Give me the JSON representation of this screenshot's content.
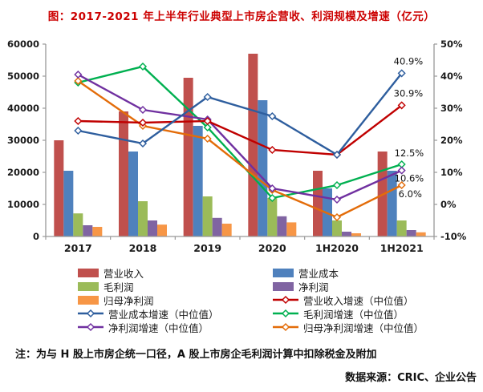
{
  "chart_data": {
    "type": "bar",
    "combo": "grouped bars (left axis, 亿元) + lines with diamond markers (right axis, %)",
    "title": "图：2017-2021 年上半年行业典型上市房企营收、利润规模及增速（亿元）",
    "categories": [
      "2017",
      "2018",
      "2019",
      "2020",
      "1H2020",
      "1H2021"
    ],
    "bar_series": [
      {
        "name": "营业收入",
        "color": "#C0504D",
        "values": [
          30000,
          39000,
          49500,
          57000,
          20500,
          26500
        ]
      },
      {
        "name": "营业成本",
        "color": "#4F81BD",
        "values": [
          20500,
          26500,
          34500,
          42500,
          15000,
          20500
        ]
      },
      {
        "name": "毛利润",
        "color": "#9BBB59",
        "values": [
          7200,
          11000,
          12500,
          12000,
          5000,
          5000
        ]
      },
      {
        "name": "净利润",
        "color": "#8064A2",
        "values": [
          3500,
          5000,
          5800,
          6300,
          1500,
          2000
        ]
      },
      {
        "name": "归母净利润",
        "color": "#F79646",
        "values": [
          3000,
          3700,
          4000,
          4400,
          1000,
          1300
        ]
      }
    ],
    "line_series": [
      {
        "name": "营业收入增速（中位值）",
        "color": "#C00000",
        "values": [
          26,
          25.5,
          26,
          17,
          15.5,
          30.9
        ],
        "end_label": "30.9%"
      },
      {
        "name": "营业成本增速（中位值）",
        "color": "#2E5E9E",
        "values": [
          23,
          19,
          33.5,
          27.5,
          15.5,
          40.9
        ],
        "end_label": "40.9%"
      },
      {
        "name": "毛利润增速（中位值）",
        "color": "#00B050",
        "values": [
          38,
          43,
          24,
          2,
          6,
          12.5
        ],
        "end_label": "12.5%"
      },
      {
        "name": "净利润增速（中位值）",
        "color": "#7030A0",
        "values": [
          40.5,
          29.5,
          26.5,
          5,
          1.5,
          10.6
        ],
        "end_label": "10.6%"
      },
      {
        "name": "归母净利润增速（中位值）",
        "color": "#E36C09",
        "values": [
          38.5,
          24.5,
          20.5,
          4.5,
          -4,
          6.0
        ],
        "end_label": "6.0%"
      }
    ],
    "left_axis": {
      "min": 0,
      "max": 60000,
      "step": 10000,
      "tick_labels": [
        "0",
        "10000",
        "20000",
        "30000",
        "40000",
        "50000",
        "60000"
      ]
    },
    "right_axis": {
      "min": -10,
      "max": 50,
      "step": 10,
      "tick_labels": [
        "-10%",
        "0%",
        "10%",
        "20%",
        "30%",
        "40%",
        "50%"
      ]
    },
    "legend": [
      {
        "label": "营业收入",
        "type": "bar",
        "color": "#C0504D"
      },
      {
        "label": "营业成本",
        "type": "bar",
        "color": "#4F81BD"
      },
      {
        "label": "毛利润",
        "type": "bar",
        "color": "#9BBB59"
      },
      {
        "label": "净利润",
        "type": "bar",
        "color": "#8064A2"
      },
      {
        "label": "归母净利润",
        "type": "bar",
        "color": "#F79646"
      },
      {
        "label": "营业收入增速（中位值）",
        "type": "line",
        "color": "#C00000"
      },
      {
        "label": "营业成本增速（中位值）",
        "type": "line",
        "color": "#2E5E9E"
      },
      {
        "label": "毛利润增速（中位值）",
        "type": "line",
        "color": "#00B050"
      },
      {
        "label": "净利润增速（中位值）",
        "type": "line",
        "color": "#7030A0"
      },
      {
        "label": "归母净利润增速（中位值）",
        "type": "line",
        "color": "#E36C09"
      }
    ]
  },
  "footnote": "注：为与 H 股上市房企统一口径，A 股上市房企毛利润计算中扣除税金及附加",
  "source": "数据来源：CRIC、企业公告"
}
